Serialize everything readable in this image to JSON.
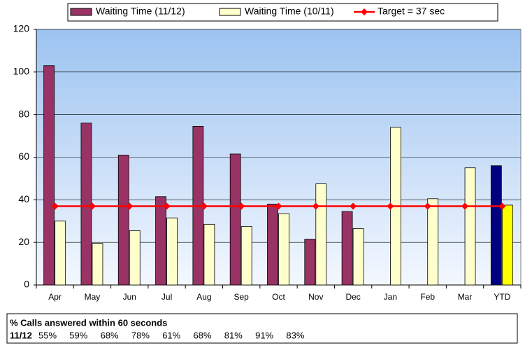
{
  "chart_data": {
    "type": "bar",
    "categories": [
      "Apr",
      "May",
      "Jun",
      "Jul",
      "Aug",
      "Sep",
      "Oct",
      "Nov",
      "Dec",
      "Jan",
      "Feb",
      "Mar",
      "YTD"
    ],
    "series": [
      {
        "name": "Waiting Time (11/12)",
        "color": "#993366",
        "last_color": "#000080",
        "values": [
          103,
          76,
          61,
          41.5,
          74.5,
          61.5,
          38,
          21.5,
          34.5,
          null,
          null,
          null,
          56
        ]
      },
      {
        "name": "Waiting Time (10/11)",
        "color": "#ffffcc",
        "last_color": "#ffff00",
        "values": [
          30,
          19.5,
          25.5,
          31.5,
          28.5,
          27.5,
          33.5,
          47.5,
          26.5,
          74,
          40.5,
          55,
          37.5
        ]
      },
      {
        "name": "Target = 37 sec",
        "type": "line",
        "color": "#ff0000",
        "values": [
          37,
          37,
          37,
          37,
          37,
          37,
          37,
          37,
          37,
          37,
          37,
          37,
          37
        ]
      }
    ],
    "ylim": [
      0,
      120
    ],
    "yticks": [
      0,
      20,
      40,
      60,
      80,
      100,
      120
    ],
    "grid": true,
    "legend": "top"
  },
  "table": {
    "title": "% Calls answered within 60 seconds",
    "rows": [
      [
        "11/12",
        "55%",
        "59%",
        "68%",
        "78%",
        "61%",
        "68%",
        "81%",
        "91%",
        "83%"
      ]
    ]
  }
}
